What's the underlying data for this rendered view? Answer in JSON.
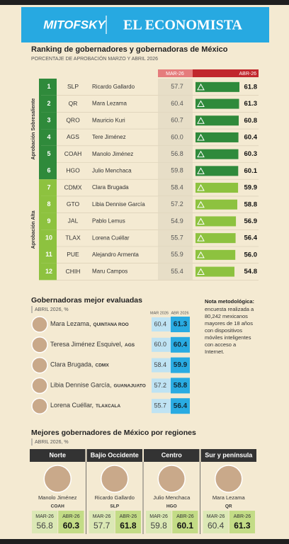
{
  "header": {
    "brand": "MITOFSKY",
    "publication": "EL ECONOMISTA"
  },
  "ranking": {
    "title": "Ranking de gobernadores y gobernadoras de México",
    "subtitle": "PORCENTAJE DE APROBACIÓN MARZO Y ABRIL 2026",
    "mar_header": "MAR-26",
    "abr_header": "ABR-26",
    "groups": [
      {
        "label": "Aprobación Sobresaliente",
        "color": "#2f8a3b",
        "rows": [
          {
            "rank": 1,
            "state": "SLP",
            "name": "Ricardo Gallardo",
            "mar": "57.7",
            "abr": 61.8,
            "abr_label": "61.8"
          },
          {
            "rank": 2,
            "state": "QR",
            "name": "Mara Lezama",
            "mar": "60.4",
            "abr": 61.3,
            "abr_label": "61.3"
          },
          {
            "rank": 3,
            "state": "QRO",
            "name": "Mauricio Kuri",
            "mar": "60.7",
            "abr": 60.8,
            "abr_label": "60.8"
          },
          {
            "rank": 4,
            "state": "AGS",
            "name": "Tere Jiménez",
            "mar": "60.0",
            "abr": 60.4,
            "abr_label": "60.4"
          },
          {
            "rank": 5,
            "state": "COAH",
            "name": "Manolo Jiménez",
            "mar": "56.8",
            "abr": 60.3,
            "abr_label": "60.3"
          },
          {
            "rank": 6,
            "state": "HGO",
            "name": "Julio Menchaca",
            "mar": "59.8",
            "abr": 60.1,
            "abr_label": "60.1"
          }
        ]
      },
      {
        "label": "Aprobación Alta",
        "color": "#8dc23f",
        "rows": [
          {
            "rank": 7,
            "state": "CDMX",
            "name": "Clara Brugada",
            "mar": "58.4",
            "abr": 59.9,
            "abr_label": "59.9"
          },
          {
            "rank": 8,
            "state": "GTO",
            "name": "Libia Dennise García",
            "mar": "57.2",
            "abr": 58.8,
            "abr_label": "58.8"
          },
          {
            "rank": 9,
            "state": "JAL",
            "name": "Pablo Lemus",
            "mar": "54.9",
            "abr": 56.9,
            "abr_label": "56.9"
          },
          {
            "rank": 10,
            "state": "TLAX",
            "name": "Lorena Cuéllar",
            "mar": "55.7",
            "abr": 56.4,
            "abr_label": "56.4"
          },
          {
            "rank": 11,
            "state": "PUE",
            "name": "Alejandro Armenta",
            "mar": "55.9",
            "abr": 56,
            "abr_label": "56.0"
          },
          {
            "rank": 12,
            "state": "CHIH",
            "name": "Maru Campos",
            "mar": "55.4",
            "abr": 54.8,
            "abr_label": "54.8"
          }
        ]
      }
    ]
  },
  "women": {
    "title": "Gobernadoras mejor evaluadas",
    "subtitle": "ABRIL 2026, %",
    "mar_header": "MAR 2026",
    "abr_header": "ABR 2026",
    "rows": [
      {
        "name": "Mara Lezama,",
        "state": "QUINTANA ROO",
        "mar": "60.4",
        "abr": "61.3"
      },
      {
        "name": "Teresa Jiménez Esquivel,",
        "state": "AGS",
        "mar": "60.0",
        "abr": "60.4"
      },
      {
        "name": "Clara Brugada,",
        "state": "CDMX",
        "mar": "58.4",
        "abr": "59.9"
      },
      {
        "name": "Libia Dennise García,",
        "state": "GUANAJUATO",
        "mar": "57.2",
        "abr": "58.8"
      },
      {
        "name": "Lorena Cuéllar,",
        "state": "TLAXCALA",
        "mar": "55.7",
        "abr": "56.4"
      }
    ]
  },
  "note": {
    "title": "Nota metodológica:",
    "lines": [
      "encuesta realizada a",
      "80,242 mexicanos",
      "mayores de 18 años",
      "con dispositivos",
      "móviles inteligentes",
      "con acceso a",
      "Internet."
    ]
  },
  "regions": {
    "title": "Mejores gobernadores de México por regiones",
    "subtitle": "ABRIL 2026, %",
    "mar_header": "MAR-26",
    "abr_header": "ABR-26",
    "cards": [
      {
        "region": "Norte",
        "name": "Manolo Jiménez",
        "state": "COAH",
        "mar": "56.8",
        "abr": "60.3"
      },
      {
        "region": "Bajío Occidente",
        "name": "Ricardo Gallardo",
        "state": "SLP",
        "mar": "57.7",
        "abr": "61.8"
      },
      {
        "region": "Centro",
        "name": "Julio Menchaca",
        "state": "HGO",
        "mar": "59.8",
        "abr": "60.1"
      },
      {
        "region": "Sur y península",
        "name": "Mara Lezama",
        "state": "QR",
        "mar": "60.4",
        "abr": "61.3"
      }
    ]
  }
}
